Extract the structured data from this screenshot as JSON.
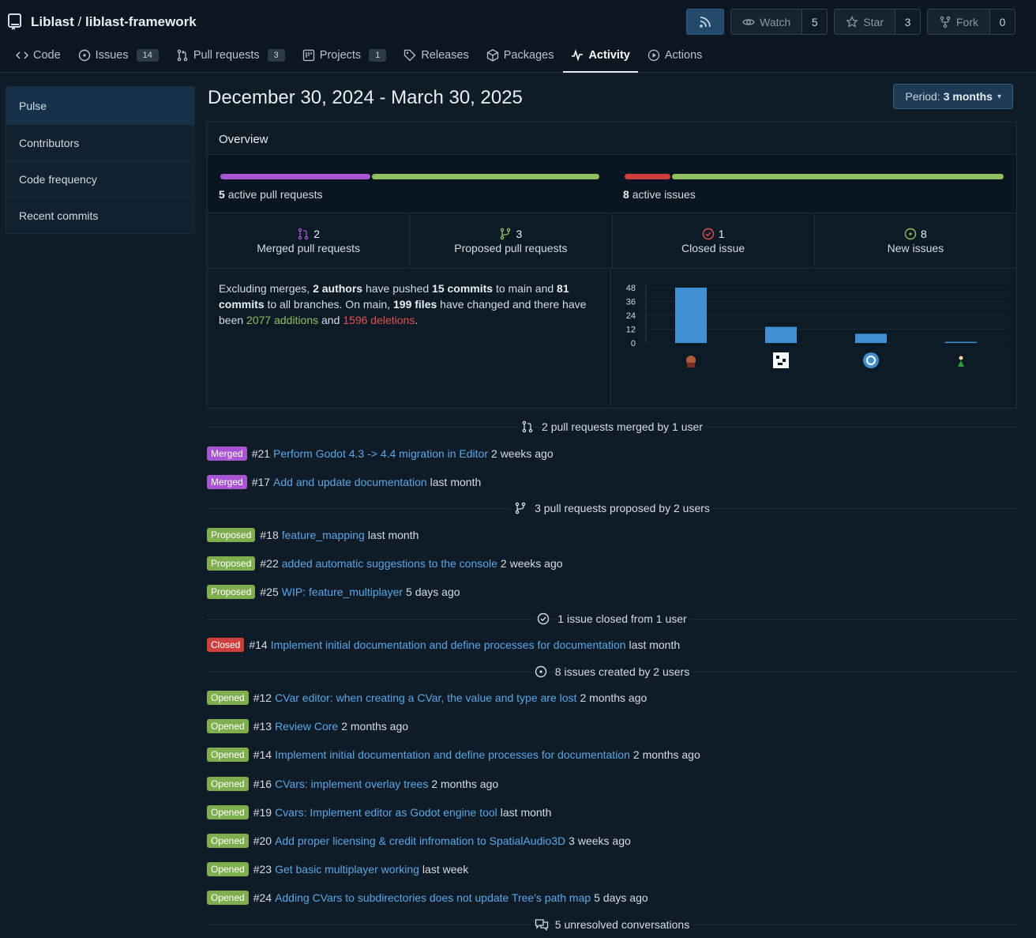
{
  "repo": {
    "owner": "Liblast",
    "separator": "/",
    "name": "liblast-framework"
  },
  "header_buttons": {
    "watch_label": "Watch",
    "watch_count": "5",
    "star_label": "Star",
    "star_count": "3",
    "fork_label": "Fork",
    "fork_count": "0"
  },
  "tabs": [
    {
      "label": "Code",
      "icon": "code-icon"
    },
    {
      "label": "Issues",
      "icon": "issue-icon",
      "badge": "14"
    },
    {
      "label": "Pull requests",
      "icon": "pull-request-icon",
      "badge": "3"
    },
    {
      "label": "Projects",
      "icon": "project-icon",
      "badge": "1"
    },
    {
      "label": "Releases",
      "icon": "tag-icon"
    },
    {
      "label": "Packages",
      "icon": "package-icon"
    },
    {
      "label": "Activity",
      "icon": "pulse-icon",
      "active": true
    },
    {
      "label": "Actions",
      "icon": "play-icon"
    }
  ],
  "sidebar": [
    "Pulse",
    "Contributors",
    "Code frequency",
    "Recent commits"
  ],
  "period": {
    "title": "December 30, 2024 - March 30, 2025",
    "button_prefix": "Period:",
    "button_value": "3 months"
  },
  "overview": {
    "heading": "Overview",
    "pr_count": "5",
    "pr_label": "active pull requests",
    "pr_merged_fraction": 0.4,
    "issue_count": "8",
    "issue_label": "active issues",
    "issue_closed_fraction": 0.125,
    "colors": {
      "merged": "#a855d4",
      "proposed": "#8fbf5e",
      "closed": "#d03f3f",
      "open": "#8fbf5e"
    },
    "stats": [
      {
        "icon": "merged-pr-icon",
        "num": "2",
        "label": "Merged pull requests"
      },
      {
        "icon": "branch-pr-icon",
        "num": "3",
        "label": "Proposed pull requests"
      },
      {
        "icon": "closed-issue-icon",
        "num": "1",
        "label": "Closed issue"
      },
      {
        "icon": "open-issue-icon",
        "num": "8",
        "label": "New issues"
      }
    ],
    "summary": {
      "p1": "Excluding merges,",
      "authors": "2 authors",
      "p2": "have pushed",
      "commits_main": "15 commits",
      "p3": "to main and",
      "commits_all": "81",
      "p4": "commits",
      "p5": "to all branches. On main,",
      "files": "199 files",
      "p6": "have changed and there have been",
      "additions": "2077 additions",
      "p7": "and",
      "deletions": "1596 deletions",
      "p8": "."
    }
  },
  "chart_data": {
    "type": "bar",
    "categories": [
      "",
      "",
      "",
      ""
    ],
    "values": [
      48,
      14,
      8,
      1
    ],
    "ylim": [
      0,
      48
    ],
    "yticks": [
      "48",
      "36",
      "24",
      "12",
      "0"
    ],
    "bar_color": "#3f8fd2"
  },
  "activity": {
    "merged_heading": "2 pull requests merged by 1 user",
    "merged": [
      {
        "tag": "Merged",
        "num": "#21",
        "title": "Perform Godot 4.3 -> 4.4 migration in Editor",
        "when": "2 weeks ago"
      },
      {
        "tag": "Merged",
        "num": "#17",
        "title": "Add and update documentation",
        "when": "last month"
      }
    ],
    "proposed_heading": "3 pull requests proposed by 2 users",
    "proposed": [
      {
        "tag": "Proposed",
        "num": "#18",
        "title": "feature_mapping",
        "when": "last month"
      },
      {
        "tag": "Proposed",
        "num": "#22",
        "title": "added automatic suggestions to the console",
        "when": "2 weeks ago"
      },
      {
        "tag": "Proposed",
        "num": "#25",
        "title": "WIP: feature_multiplayer",
        "when": "5 days ago"
      }
    ],
    "closed_heading": "1 issue closed from 1 user",
    "closed": [
      {
        "tag": "Closed",
        "num": "#14",
        "title": "Implement initial documentation and define processes for documentation",
        "when": "last month"
      }
    ],
    "opened_heading": "8 issues created by 2 users",
    "opened": [
      {
        "tag": "Opened",
        "num": "#12",
        "title": "CVar editor: when creating a CVar, the value and type are lost",
        "when": "2 months ago"
      },
      {
        "tag": "Opened",
        "num": "#13",
        "title": "Review Core",
        "when": "2 months ago"
      },
      {
        "tag": "Opened",
        "num": "#14",
        "title": "Implement initial documentation and define processes for documentation",
        "when": "2 months ago"
      },
      {
        "tag": "Opened",
        "num": "#16",
        "title": "CVars: implement overlay trees",
        "when": "2 months ago"
      },
      {
        "tag": "Opened",
        "num": "#19",
        "title": "Cvars: Implement editor as Godot engine tool",
        "when": "last month"
      },
      {
        "tag": "Opened",
        "num": "#20",
        "title": "Add proper licensing & credit infromation to SpatialAudio3D",
        "when": "3 weeks ago"
      },
      {
        "tag": "Opened",
        "num": "#23",
        "title": "Get basic multiplayer working",
        "when": "last week"
      },
      {
        "tag": "Opened",
        "num": "#24",
        "title": "Adding CVars to subdirectories does not update Tree's path map",
        "when": "5 days ago"
      }
    ],
    "conversations_heading": "5 unresolved conversations"
  }
}
